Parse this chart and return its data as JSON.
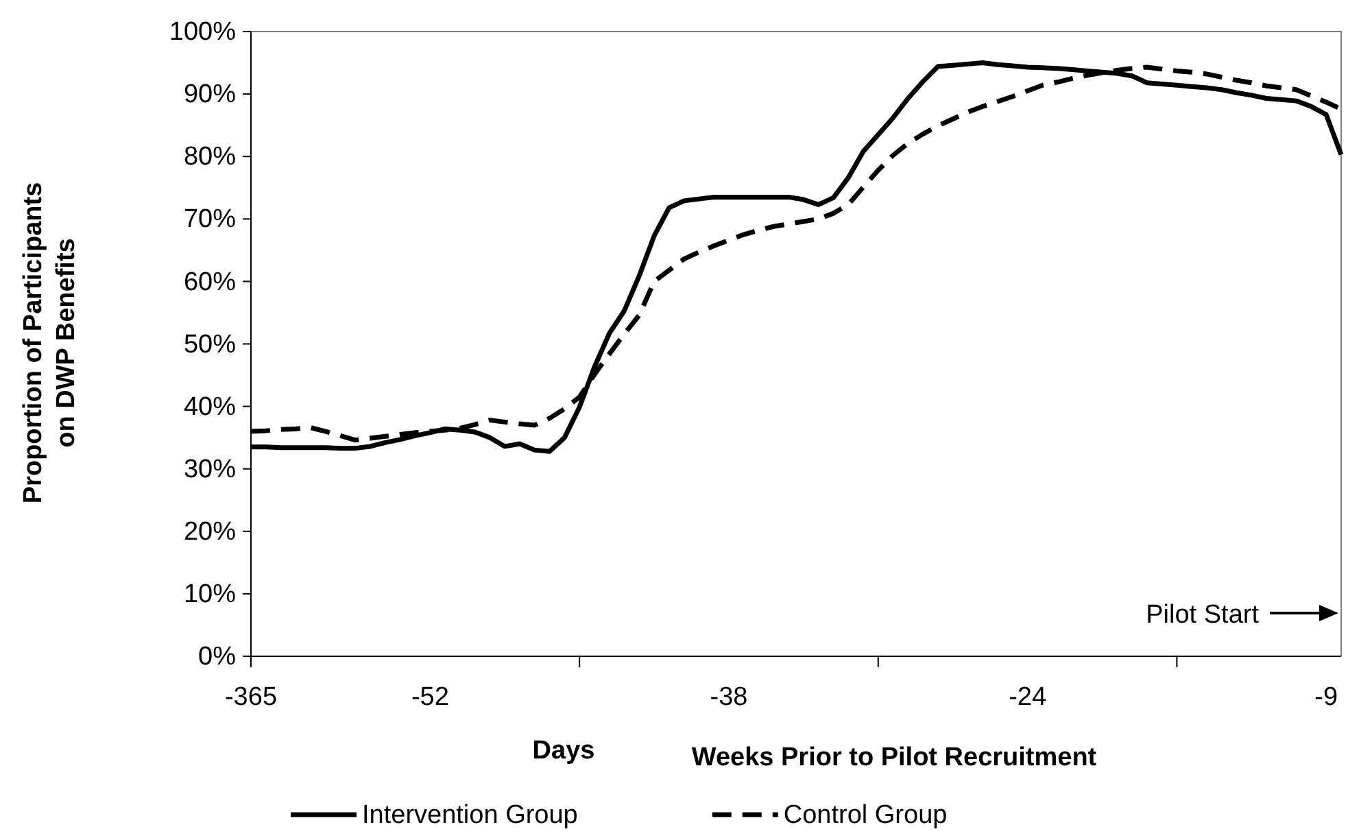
{
  "chart_data": {
    "type": "line",
    "xlabel": "Weeks Prior to Pilot Recruitment",
    "ylabel": "Proportion of Participants\non DWP Benefits",
    "categories": [
      "-365",
      null,
      null,
      null,
      null,
      null,
      null,
      null,
      null,
      null,
      null,
      null,
      "-52",
      null,
      null,
      null,
      null,
      null,
      null,
      null,
      null,
      null,
      null,
      null,
      null,
      null,
      null,
      null,
      null,
      null,
      null,
      null,
      "-38",
      null,
      null,
      null,
      null,
      null,
      null,
      null,
      null,
      null,
      null,
      null,
      null,
      null,
      null,
      null,
      null,
      null,
      null,
      null,
      "-24",
      null,
      null,
      null,
      null,
      null,
      null,
      null,
      null,
      null,
      null,
      null,
      null,
      null,
      null,
      null,
      null,
      null,
      null,
      null,
      "-9",
      null
    ],
    "ylim": [
      0,
      100
    ],
    "yticks": [
      {
        "value": 0,
        "label": "0%"
      },
      {
        "value": 10,
        "label": "10%"
      },
      {
        "value": 20,
        "label": "20%"
      },
      {
        "value": 30,
        "label": "30%"
      },
      {
        "value": 40,
        "label": "40%"
      },
      {
        "value": 50,
        "label": "50%"
      },
      {
        "value": 60,
        "label": "60%"
      },
      {
        "value": 70,
        "label": "70%"
      },
      {
        "value": 80,
        "label": "80%"
      },
      {
        "value": 90,
        "label": "90%"
      },
      {
        "value": 100,
        "label": "100%"
      }
    ],
    "grid": false,
    "legend": "bottom",
    "annotations": [
      "Days",
      "Pilot Start"
    ],
    "series": [
      {
        "name": "Intervention Group",
        "color": "#000000",
        "line_style": "solid",
        "values": [
          33.5,
          33.5,
          33.4,
          33.4,
          33.4,
          33.4,
          33.3,
          33.3,
          33.6,
          34.2,
          34.7,
          35.3,
          35.8,
          36.4,
          36.2,
          35.9,
          35.0,
          33.6,
          34.0,
          33.0,
          32.8,
          35.0,
          39.9,
          46.3,
          51.7,
          55.3,
          60.9,
          67.3,
          71.8,
          72.9,
          73.2,
          73.5,
          73.5,
          73.5,
          73.5,
          73.5,
          73.5,
          73.1,
          72.3,
          73.4,
          76.6,
          80.8,
          83.5,
          86.2,
          89.3,
          92.0,
          94.4,
          94.6,
          94.8,
          95.0,
          94.7,
          94.5,
          94.3,
          94.2,
          94.1,
          93.9,
          93.7,
          93.5,
          93.3,
          92.9,
          91.8,
          91.6,
          91.4,
          91.2,
          91.0,
          90.7,
          90.2,
          89.8,
          89.3,
          89.1,
          88.9,
          88.0,
          86.7,
          80.3
        ]
      },
      {
        "name": "Control Group",
        "color": "#000000",
        "line_style": "dashed",
        "values": [
          36.0,
          36.1,
          36.3,
          36.4,
          36.6,
          36.0,
          35.3,
          34.6,
          34.9,
          35.2,
          35.5,
          35.8,
          36.0,
          36.2,
          36.5,
          37.1,
          37.8,
          37.5,
          37.2,
          37.0,
          38.1,
          39.6,
          41.5,
          45.1,
          48.4,
          51.6,
          54.6,
          60.0,
          61.8,
          63.6,
          64.7,
          65.7,
          66.6,
          67.5,
          68.2,
          68.8,
          69.2,
          69.6,
          70.0,
          70.9,
          72.3,
          75.1,
          77.8,
          80.2,
          82.1,
          83.6,
          84.9,
          86.0,
          87.1,
          88.0,
          88.8,
          89.6,
          90.5,
          91.4,
          91.9,
          92.5,
          93.0,
          93.4,
          93.8,
          94.1,
          94.3,
          94.0,
          93.7,
          93.5,
          93.2,
          92.7,
          92.2,
          91.8,
          91.3,
          91.0,
          90.7,
          89.7,
          88.7,
          87.6
        ]
      }
    ]
  }
}
